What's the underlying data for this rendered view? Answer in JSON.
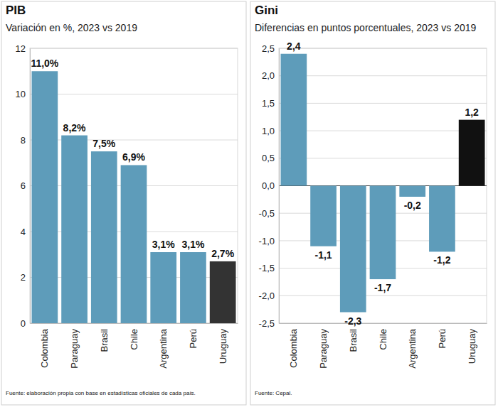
{
  "chart_data": [
    {
      "type": "bar",
      "title": "PIB",
      "subtitle": "Variación en %, 2023 vs 2019",
      "categories": [
        "Colombia",
        "Paraguay",
        "Brasil",
        "Chile",
        "Argentina",
        "Perú",
        "Uruguay"
      ],
      "values": [
        11.0,
        8.2,
        7.5,
        6.9,
        3.1,
        3.1,
        2.7
      ],
      "value_labels": [
        "11,0%",
        "8,2%",
        "7,5%",
        "6,9%",
        "3,1%",
        "3,1%",
        "2,7%"
      ],
      "colors": [
        "#5e9cba",
        "#5e9cba",
        "#5e9cba",
        "#5e9cba",
        "#5e9cba",
        "#5e9cba",
        "#333333"
      ],
      "ylim": [
        0,
        12
      ],
      "yticks": [
        0,
        2,
        4,
        6,
        8,
        10,
        12
      ],
      "grid": true,
      "data_labels": true,
      "source": "Fuente: elaboración propia con base en estadísticas oficiales de cada país."
    },
    {
      "type": "bar",
      "title": "Gini",
      "subtitle": "Diferencias en puntos porcentuales, 2023 vs 2019",
      "categories": [
        "Colombia",
        "Paraguay",
        "Brasil",
        "Chile",
        "Argentina",
        "Perú",
        "Uruguay"
      ],
      "values": [
        2.4,
        -1.1,
        -2.3,
        -1.7,
        -0.2,
        -1.2,
        1.2
      ],
      "value_labels": [
        "2,4",
        "-1,1",
        "-2,3",
        "-1,7",
        "-0,2",
        "-1,2",
        "1,2"
      ],
      "colors": [
        "#5e9cba",
        "#5e9cba",
        "#5e9cba",
        "#5e9cba",
        "#5e9cba",
        "#5e9cba",
        "#111111"
      ],
      "ylim": [
        -2.5,
        2.5
      ],
      "yticks": [
        {
          "value": -2.5,
          "label": "-2,5"
        },
        {
          "value": -2.0,
          "label": "-2,0"
        },
        {
          "value": -1.5,
          "label": "-1,5"
        },
        {
          "value": -1.0,
          "label": "-1,0"
        },
        {
          "value": -0.5,
          "label": "-0,5"
        },
        {
          "value": 0.0,
          "label": "0,0"
        },
        {
          "value": 0.5,
          "label": "0,5"
        },
        {
          "value": 1.0,
          "label": "1,0"
        },
        {
          "value": 1.5,
          "label": "1,5"
        },
        {
          "value": 2.0,
          "label": "2,0"
        },
        {
          "value": 2.5,
          "label": "2,5"
        }
      ],
      "grid": true,
      "data_labels": true,
      "source": "Fuente: Cepal."
    }
  ]
}
